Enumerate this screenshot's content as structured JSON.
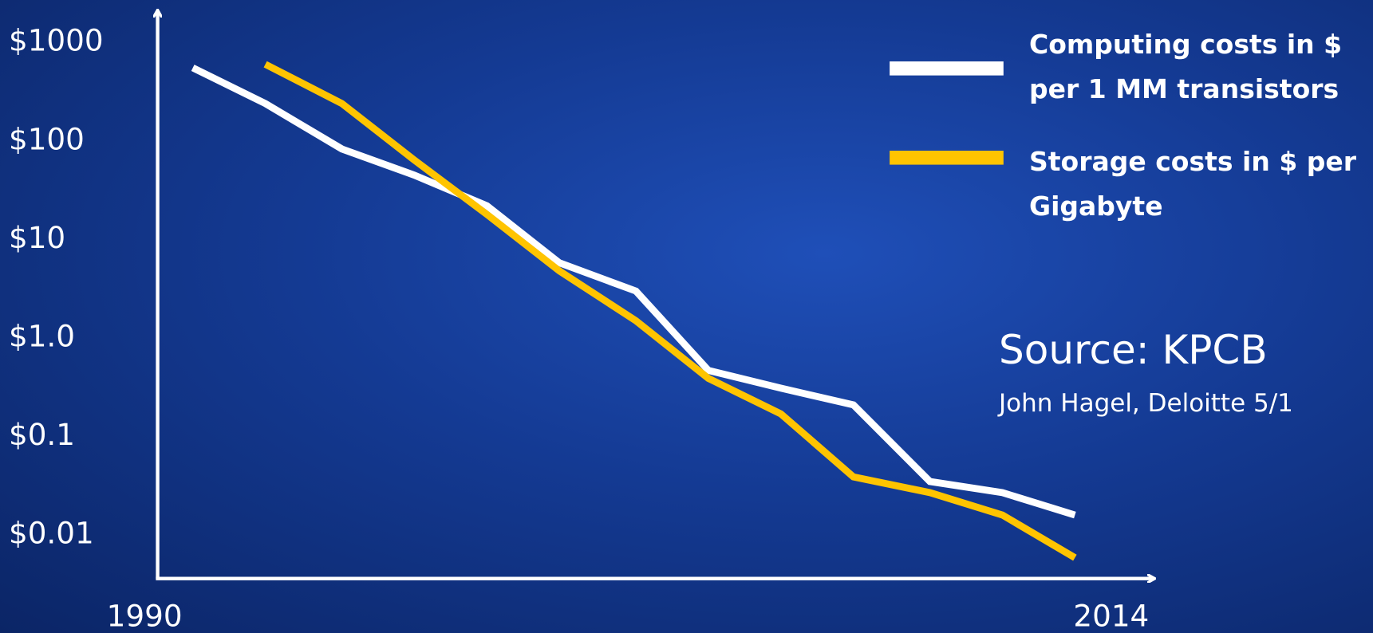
{
  "chart_data": {
    "type": "line",
    "x_label_start": null,
    "xlim": [
      1990,
      2015
    ],
    "xticks": [
      1990,
      2014
    ],
    "ylim": [
      0.0037,
      2100
    ],
    "log_y": true,
    "yticks": [
      {
        "value": 1000,
        "label": "$1000"
      },
      {
        "value": 100,
        "label": "$100"
      },
      {
        "value": 10,
        "label": "$10"
      },
      {
        "value": 1,
        "label": "$1.0"
      },
      {
        "value": 0.1,
        "label": "$0.1"
      },
      {
        "value": 0.01,
        "label": "$0.01"
      }
    ],
    "series": [
      {
        "name": "Computing costs in $ per 1 MM transistors",
        "color": "#ffffff",
        "x": [
          1991.2,
          1993,
          1994.9,
          1996.7,
          1998.5,
          2000.3,
          2002.2,
          2004,
          2005.8,
          2007.6,
          2009.5,
          2011.3,
          2013.1
        ],
        "values": [
          553,
          240,
          83,
          45,
          22,
          5.8,
          3.0,
          0.47,
          0.31,
          0.21,
          0.035,
          0.027,
          0.016
        ]
      },
      {
        "name": "Storage costs in $ per Gigabyte",
        "color": "#ffc400",
        "x": [
          1993,
          1994.9,
          1996.7,
          1998.5,
          2000.3,
          2002.2,
          2004,
          2005.8,
          2007.6,
          2009.5,
          2011.3,
          2013.1
        ],
        "values": [
          600,
          240,
          64,
          18,
          4.8,
          1.5,
          0.39,
          0.17,
          0.039,
          0.027,
          0.016,
          0.0059
        ]
      }
    ],
    "source": "Source: KPCB",
    "credit": "John Hagel, Deloitte 5/1"
  }
}
